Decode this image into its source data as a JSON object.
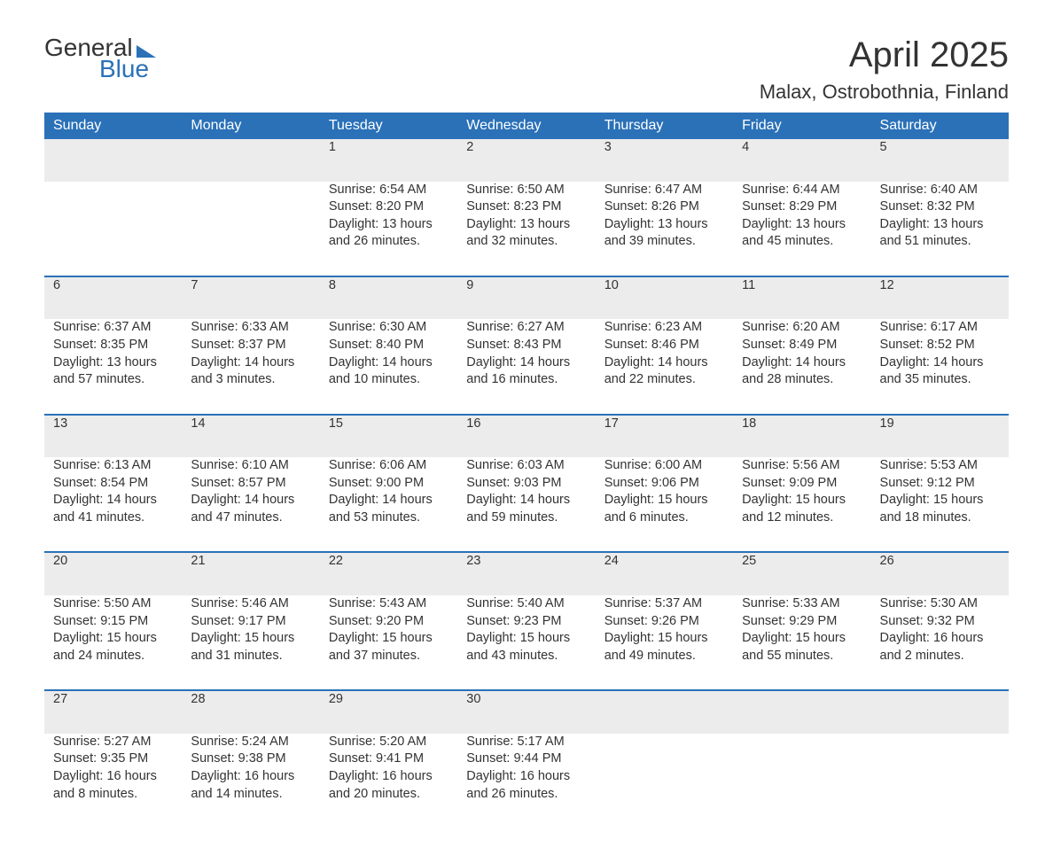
{
  "logo": {
    "word1": "General",
    "word2": "Blue"
  },
  "header": {
    "month_title": "April 2025",
    "location": "Malax, Ostrobothnia, Finland"
  },
  "calendar": {
    "day_names": [
      "Sunday",
      "Monday",
      "Tuesday",
      "Wednesday",
      "Thursday",
      "Friday",
      "Saturday"
    ],
    "colors": {
      "header_bg": "#2a71b8",
      "header_fg": "#ffffff",
      "daynum_bg": "#ececec",
      "row_divider": "#2a71b8",
      "text": "#333333"
    },
    "weeks": [
      [
        null,
        null,
        {
          "n": "1",
          "sunrise": "6:54 AM",
          "sunset": "8:20 PM",
          "day_h": "13",
          "day_m": "26"
        },
        {
          "n": "2",
          "sunrise": "6:50 AM",
          "sunset": "8:23 PM",
          "day_h": "13",
          "day_m": "32"
        },
        {
          "n": "3",
          "sunrise": "6:47 AM",
          "sunset": "8:26 PM",
          "day_h": "13",
          "day_m": "39"
        },
        {
          "n": "4",
          "sunrise": "6:44 AM",
          "sunset": "8:29 PM",
          "day_h": "13",
          "day_m": "45"
        },
        {
          "n": "5",
          "sunrise": "6:40 AM",
          "sunset": "8:32 PM",
          "day_h": "13",
          "day_m": "51"
        }
      ],
      [
        {
          "n": "6",
          "sunrise": "6:37 AM",
          "sunset": "8:35 PM",
          "day_h": "13",
          "day_m": "57"
        },
        {
          "n": "7",
          "sunrise": "6:33 AM",
          "sunset": "8:37 PM",
          "day_h": "14",
          "day_m": "3"
        },
        {
          "n": "8",
          "sunrise": "6:30 AM",
          "sunset": "8:40 PM",
          "day_h": "14",
          "day_m": "10"
        },
        {
          "n": "9",
          "sunrise": "6:27 AM",
          "sunset": "8:43 PM",
          "day_h": "14",
          "day_m": "16"
        },
        {
          "n": "10",
          "sunrise": "6:23 AM",
          "sunset": "8:46 PM",
          "day_h": "14",
          "day_m": "22"
        },
        {
          "n": "11",
          "sunrise": "6:20 AM",
          "sunset": "8:49 PM",
          "day_h": "14",
          "day_m": "28"
        },
        {
          "n": "12",
          "sunrise": "6:17 AM",
          "sunset": "8:52 PM",
          "day_h": "14",
          "day_m": "35"
        }
      ],
      [
        {
          "n": "13",
          "sunrise": "6:13 AM",
          "sunset": "8:54 PM",
          "day_h": "14",
          "day_m": "41"
        },
        {
          "n": "14",
          "sunrise": "6:10 AM",
          "sunset": "8:57 PM",
          "day_h": "14",
          "day_m": "47"
        },
        {
          "n": "15",
          "sunrise": "6:06 AM",
          "sunset": "9:00 PM",
          "day_h": "14",
          "day_m": "53"
        },
        {
          "n": "16",
          "sunrise": "6:03 AM",
          "sunset": "9:03 PM",
          "day_h": "14",
          "day_m": "59"
        },
        {
          "n": "17",
          "sunrise": "6:00 AM",
          "sunset": "9:06 PM",
          "day_h": "15",
          "day_m": "6"
        },
        {
          "n": "18",
          "sunrise": "5:56 AM",
          "sunset": "9:09 PM",
          "day_h": "15",
          "day_m": "12"
        },
        {
          "n": "19",
          "sunrise": "5:53 AM",
          "sunset": "9:12 PM",
          "day_h": "15",
          "day_m": "18"
        }
      ],
      [
        {
          "n": "20",
          "sunrise": "5:50 AM",
          "sunset": "9:15 PM",
          "day_h": "15",
          "day_m": "24"
        },
        {
          "n": "21",
          "sunrise": "5:46 AM",
          "sunset": "9:17 PM",
          "day_h": "15",
          "day_m": "31"
        },
        {
          "n": "22",
          "sunrise": "5:43 AM",
          "sunset": "9:20 PM",
          "day_h": "15",
          "day_m": "37"
        },
        {
          "n": "23",
          "sunrise": "5:40 AM",
          "sunset": "9:23 PM",
          "day_h": "15",
          "day_m": "43"
        },
        {
          "n": "24",
          "sunrise": "5:37 AM",
          "sunset": "9:26 PM",
          "day_h": "15",
          "day_m": "49"
        },
        {
          "n": "25",
          "sunrise": "5:33 AM",
          "sunset": "9:29 PM",
          "day_h": "15",
          "day_m": "55"
        },
        {
          "n": "26",
          "sunrise": "5:30 AM",
          "sunset": "9:32 PM",
          "day_h": "16",
          "day_m": "2"
        }
      ],
      [
        {
          "n": "27",
          "sunrise": "5:27 AM",
          "sunset": "9:35 PM",
          "day_h": "16",
          "day_m": "8"
        },
        {
          "n": "28",
          "sunrise": "5:24 AM",
          "sunset": "9:38 PM",
          "day_h": "16",
          "day_m": "14"
        },
        {
          "n": "29",
          "sunrise": "5:20 AM",
          "sunset": "9:41 PM",
          "day_h": "16",
          "day_m": "20"
        },
        {
          "n": "30",
          "sunrise": "5:17 AM",
          "sunset": "9:44 PM",
          "day_h": "16",
          "day_m": "26"
        },
        null,
        null,
        null
      ]
    ],
    "labels": {
      "sunrise": "Sunrise:",
      "sunset": "Sunset:",
      "daylight_prefix": "Daylight:",
      "hours_word": "hours",
      "and_word": "and",
      "minutes_word": "minutes."
    }
  }
}
